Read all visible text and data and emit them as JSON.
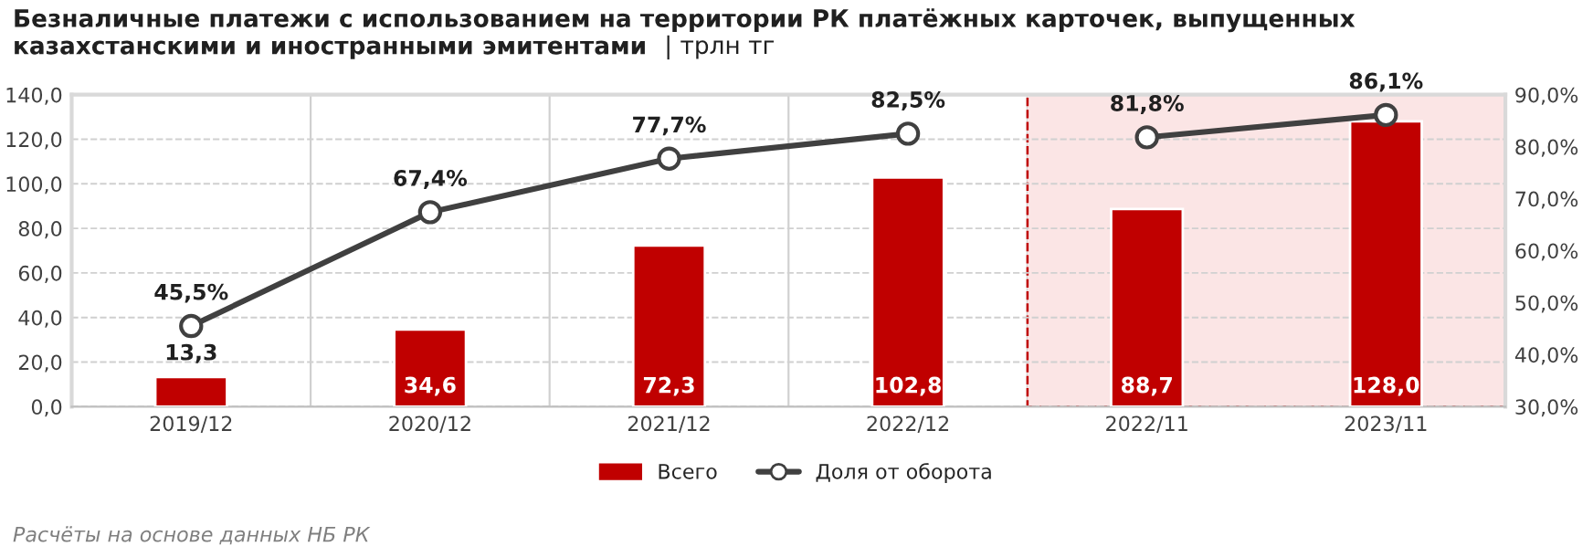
{
  "chart_data": {
    "type": "bar",
    "title": "Безналичные платежи с использованием на территории РК платёжных карточек, выпущенных казахстанскими и иностранными эмитентами",
    "subtitle": "| трлн тг",
    "categories": [
      "2019/12",
      "2020/12",
      "2021/12",
      "2022/12",
      "2022/11",
      "2023/11"
    ],
    "series": [
      {
        "name": "Всего",
        "type": "bar",
        "color": "#c00000",
        "values": [
          13.3,
          34.6,
          72.3,
          102.8,
          88.7,
          128.0
        ],
        "value_labels": [
          "13,3",
          "34,6",
          "72,3",
          "102,8",
          "88,7",
          "128,0"
        ]
      },
      {
        "name": "Доля от оборота",
        "type": "line",
        "axis": "y2",
        "color": "#404040",
        "marker": "circle",
        "values": [
          45.5,
          67.4,
          77.7,
          82.5,
          null,
          null
        ],
        "value_labels": [
          "45,5%",
          "67,4%",
          "77,7%",
          "82,5%",
          null,
          null
        ]
      },
      {
        "type": "line",
        "axis": "y2",
        "color": "#404040",
        "marker": "circle",
        "values": [
          null,
          null,
          null,
          null,
          81.8,
          86.1
        ],
        "value_labels": [
          null,
          null,
          null,
          null,
          "81,8%",
          "86,1%"
        ]
      }
    ],
    "ylim": [
      0,
      140
    ],
    "yticks": [
      {
        "value": 0,
        "label": "0,0"
      },
      {
        "value": 20,
        "label": "20,0"
      },
      {
        "value": 40,
        "label": "40,0"
      },
      {
        "value": 60,
        "label": "60,0"
      },
      {
        "value": 80,
        "label": "80,0"
      },
      {
        "value": 100,
        "label": "100,0"
      },
      {
        "value": 120,
        "label": "120,0"
      },
      {
        "value": 140,
        "label": "140,0"
      }
    ],
    "y2lim": [
      30,
      90
    ],
    "y2ticks": [
      {
        "value": 30,
        "label": "30,0%"
      },
      {
        "value": 40,
        "label": "40,0%"
      },
      {
        "value": 50,
        "label": "50,0%"
      },
      {
        "value": 60,
        "label": "60,0%"
      },
      {
        "value": 70,
        "label": "70,0%"
      },
      {
        "value": 80,
        "label": "80,0%"
      },
      {
        "value": 90,
        "label": "90,0%"
      }
    ],
    "bands": [
      {
        "axis": "x",
        "from": "2022/11",
        "to": "2023/11",
        "color": "#fbe5e5"
      }
    ],
    "grid": true,
    "legend": "bottom",
    "annotations": [
      "Расчёты на основе данных НБ РК"
    ]
  }
}
